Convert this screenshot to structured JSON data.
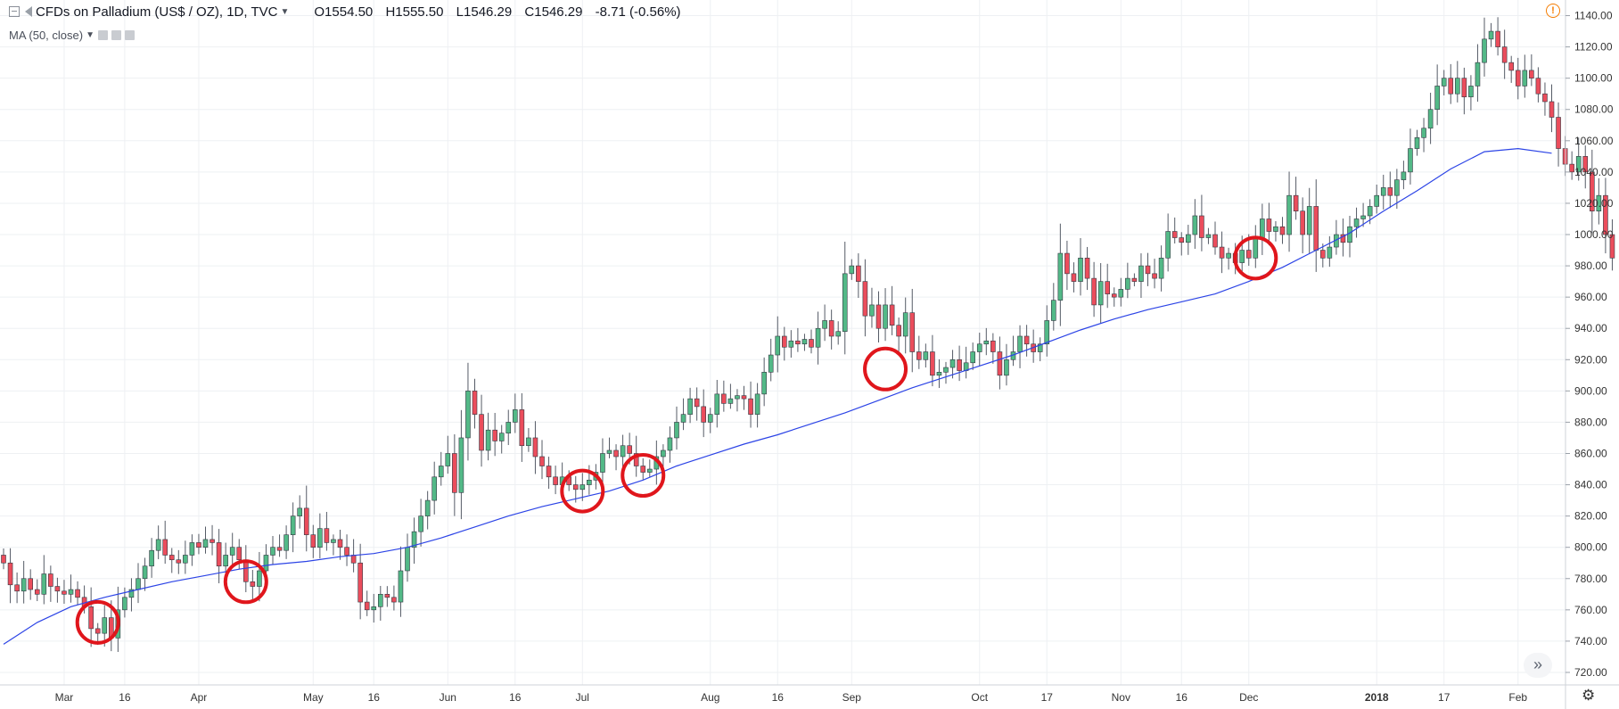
{
  "legend": {
    "title": "CFDs on Palladium (US$ / OZ), 1D, TVC",
    "open": "O1554.50",
    "high": "H1555.50",
    "low": "L1546.29",
    "close": "C1546.29",
    "change": "-8.71 (-0.56%)",
    "ma_label": "MA (50, close)"
  },
  "colors": {
    "up": "#53b987",
    "down": "#eb4d5c",
    "ma": "#2c44e6",
    "marker": "#e0161c",
    "grid": "#eef0f3",
    "axis_text": "#333333",
    "alert": "#f57c00"
  },
  "icons": [
    "collapse-icon",
    "flag-icon",
    "chevron-down-icon",
    "eye-icon",
    "gear-icon",
    "close-icon",
    "alert-icon",
    "double-chevron-right-icon",
    "settings-icon"
  ],
  "chart_data": {
    "type": "candlestick",
    "ylim": [
      712,
      1150
    ],
    "y_ticks": [
      720,
      740,
      760,
      780,
      800,
      820,
      840,
      860,
      880,
      900,
      920,
      940,
      960,
      980,
      1000,
      1020,
      1040,
      1060,
      1080,
      1100,
      1120,
      1140
    ],
    "x_ticks": [
      {
        "label": "Mar",
        "x": 9,
        "bold": false
      },
      {
        "label": "16",
        "x": 18,
        "bold": false
      },
      {
        "label": "Apr",
        "x": 29,
        "bold": false
      },
      {
        "label": "May",
        "x": 46,
        "bold": false
      },
      {
        "label": "16",
        "x": 55,
        "bold": false
      },
      {
        "label": "Jun",
        "x": 66,
        "bold": false
      },
      {
        "label": "16",
        "x": 76,
        "bold": false
      },
      {
        "label": "Jul",
        "x": 86,
        "bold": false
      },
      {
        "label": "Aug",
        "x": 105,
        "bold": false
      },
      {
        "label": "16",
        "x": 115,
        "bold": false
      },
      {
        "label": "Sep",
        "x": 126,
        "bold": false
      },
      {
        "label": "Oct",
        "x": 145,
        "bold": false
      },
      {
        "label": "17",
        "x": 155,
        "bold": false
      },
      {
        "label": "Nov",
        "x": 166,
        "bold": false
      },
      {
        "label": "16",
        "x": 175,
        "bold": false
      },
      {
        "label": "Dec",
        "x": 185,
        "bold": false
      },
      {
        "label": "2018",
        "x": 204,
        "bold": true
      },
      {
        "label": "17",
        "x": 214,
        "bold": false
      },
      {
        "label": "Feb",
        "x": 225,
        "bold": false
      }
    ],
    "close": [
      790,
      776,
      772,
      780,
      773,
      770,
      783,
      775,
      772,
      770,
      773,
      768,
      762,
      748,
      745,
      755,
      742,
      760,
      768,
      773,
      780,
      788,
      798,
      805,
      795,
      792,
      790,
      795,
      803,
      800,
      805,
      803,
      788,
      795,
      800,
      792,
      778,
      775,
      785,
      795,
      800,
      798,
      808,
      820,
      825,
      808,
      800,
      812,
      803,
      805,
      800,
      795,
      790,
      765,
      760,
      762,
      770,
      768,
      765,
      785,
      800,
      810,
      820,
      830,
      845,
      852,
      860,
      835,
      870,
      900,
      885,
      862,
      875,
      868,
      873,
      880,
      888,
      865,
      870,
      858,
      852,
      845,
      840,
      845,
      840,
      837,
      840,
      843,
      848,
      860,
      862,
      858,
      865,
      860,
      852,
      848,
      850,
      858,
      862,
      870,
      880,
      885,
      895,
      890,
      880,
      885,
      898,
      892,
      895,
      897,
      895,
      885,
      898,
      912,
      923,
      935,
      928,
      932,
      930,
      933,
      928,
      940,
      945,
      935,
      938,
      975,
      980,
      970,
      948,
      955,
      940,
      955,
      942,
      935,
      950,
      925,
      920,
      925,
      910,
      912,
      915,
      920,
      913,
      918,
      925,
      930,
      932,
      925,
      910,
      920,
      925,
      935,
      930,
      925,
      930,
      945,
      958,
      988,
      975,
      970,
      985,
      972,
      955,
      970,
      962,
      960,
      965,
      972,
      970,
      980,
      975,
      972,
      985,
      1002,
      998,
      995,
      1000,
      1012,
      998,
      1000,
      992,
      985,
      988,
      982,
      990,
      985,
      998,
      1010,
      1002,
      1005,
      1000,
      1025,
      1015,
      1000,
      1018,
      990,
      985,
      992,
      1000,
      995,
      1005,
      1010,
      1012,
      1018,
      1025,
      1030,
      1025,
      1035,
      1040,
      1055,
      1062,
      1068,
      1080,
      1095,
      1100,
      1090,
      1100,
      1088,
      1095,
      1110,
      1125,
      1130,
      1120,
      1110,
      1105,
      1095,
      1105,
      1100,
      1090,
      1085,
      1075,
      1055,
      1045,
      1040,
      1050,
      1040,
      1015,
      1025,
      1000,
      985
    ],
    "ma50": [
      [
        0,
        738
      ],
      [
        5,
        752
      ],
      [
        10,
        762
      ],
      [
        15,
        768
      ],
      [
        20,
        773
      ],
      [
        25,
        778
      ],
      [
        30,
        782
      ],
      [
        35,
        786
      ],
      [
        40,
        789
      ],
      [
        45,
        791
      ],
      [
        50,
        794
      ],
      [
        55,
        796
      ],
      [
        60,
        800
      ],
      [
        65,
        806
      ],
      [
        70,
        813
      ],
      [
        75,
        820
      ],
      [
        80,
        826
      ],
      [
        85,
        831
      ],
      [
        90,
        836
      ],
      [
        95,
        843
      ],
      [
        100,
        852
      ],
      [
        105,
        859
      ],
      [
        110,
        866
      ],
      [
        115,
        872
      ],
      [
        120,
        879
      ],
      [
        125,
        886
      ],
      [
        130,
        894
      ],
      [
        135,
        902
      ],
      [
        140,
        909
      ],
      [
        145,
        916
      ],
      [
        150,
        923
      ],
      [
        155,
        931
      ],
      [
        160,
        939
      ],
      [
        165,
        946
      ],
      [
        170,
        952
      ],
      [
        175,
        957
      ],
      [
        180,
        962
      ],
      [
        185,
        970
      ],
      [
        190,
        979
      ],
      [
        195,
        990
      ],
      [
        200,
        1001
      ],
      [
        205,
        1015
      ],
      [
        210,
        1028
      ],
      [
        215,
        1042
      ],
      [
        220,
        1053
      ],
      [
        225,
        1055
      ],
      [
        230,
        1052
      ]
    ],
    "markers": [
      {
        "x": 14,
        "y": 752
      },
      {
        "x": 36,
        "y": 778
      },
      {
        "x": 86,
        "y": 836
      },
      {
        "x": 95,
        "y": 846
      },
      {
        "x": 131,
        "y": 914
      },
      {
        "x": 186,
        "y": 985
      }
    ]
  }
}
